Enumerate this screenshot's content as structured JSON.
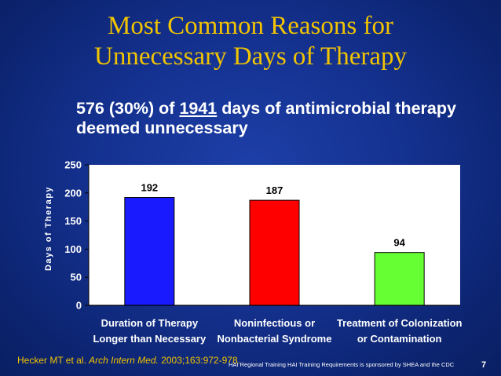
{
  "slide": {
    "title_line1": "Most Common Reasons for",
    "title_line2": "Unnecessary Days of Therapy",
    "subtitle_a": "576 (30%) of ",
    "subtitle_b": "1941",
    "subtitle_c": " days of antimicrobial therapy deemed unnecessary",
    "citation_a": "Hecker MT et al. ",
    "citation_b": "Arch Intern Med.",
    "citation_c": " 2003;163:972-978.",
    "sponsor": "HAI Regional Training HAI Training Requirements is sponsored by SHEA and the CDC",
    "page_number": "7"
  },
  "chart_data": {
    "type": "bar",
    "ylabel": "Days of Therapy",
    "xlabel": "",
    "ylim": [
      0,
      250
    ],
    "yticks": [
      0,
      50,
      100,
      150,
      200,
      250
    ],
    "categories": [
      [
        "Duration of Therapy",
        "Longer than Necessary"
      ],
      [
        "Noninfectious or",
        "Nonbacterial Syndrome"
      ],
      [
        "Treatment of Colonization",
        "or Contamination"
      ]
    ],
    "values": [
      192,
      187,
      94
    ],
    "data_labels": [
      "192",
      "187",
      "94"
    ],
    "colors": [
      "#1a1aff",
      "#ff0000",
      "#66ff33"
    ],
    "grid": false,
    "legend": "none",
    "plot_background": "#ffffff"
  }
}
